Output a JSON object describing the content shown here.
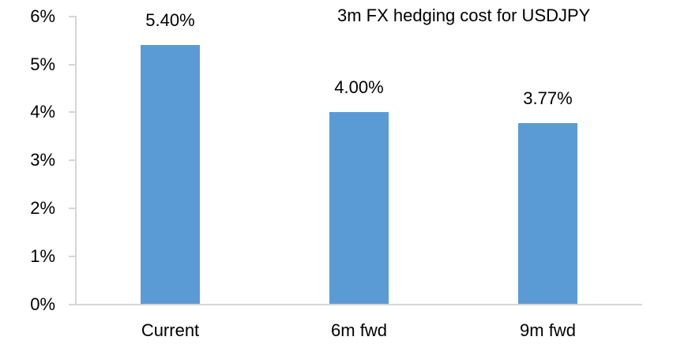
{
  "chart_data": {
    "type": "bar",
    "title": "3m FX hedging cost for USDJPY",
    "categories": [
      "Current",
      "6m fwd",
      "9m fwd"
    ],
    "values": [
      5.4,
      4.0,
      3.77
    ],
    "data_labels": [
      "5.40%",
      "4.00%",
      "3.77%"
    ],
    "y_ticks": [
      0,
      1,
      2,
      3,
      4,
      5,
      6
    ],
    "y_tick_labels": [
      "0%",
      "1%",
      "2%",
      "3%",
      "4%",
      "5%",
      "6%"
    ],
    "ylim": [
      0,
      6
    ],
    "xlabel": "",
    "ylabel": "",
    "grid": false,
    "legend": false,
    "colors": {
      "bar_fill": "#5B9BD5",
      "axis_line": "#D6D6D6",
      "text": "#000000",
      "background": "#FFFFFF"
    }
  }
}
